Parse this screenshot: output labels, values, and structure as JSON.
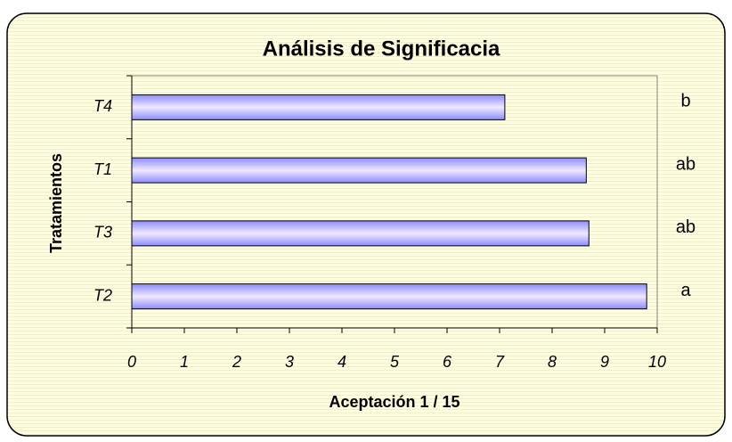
{
  "chart_data": {
    "type": "bar",
    "orientation": "horizontal",
    "title": "Análisis de Significacia",
    "x_label": "Aceptación 1 / 15",
    "y_label": "Tratamientos",
    "categories": [
      "T4",
      "T1",
      "T3",
      "T2"
    ],
    "values": [
      7.1,
      8.65,
      8.7,
      9.8
    ],
    "annotations": [
      "b",
      "ab",
      "ab",
      "a"
    ],
    "color": "#8c8cff",
    "xlim": [
      0,
      10
    ],
    "xticks": [
      0,
      1,
      2,
      3,
      4,
      5,
      6,
      7,
      8,
      9,
      10
    ],
    "grid": false
  }
}
